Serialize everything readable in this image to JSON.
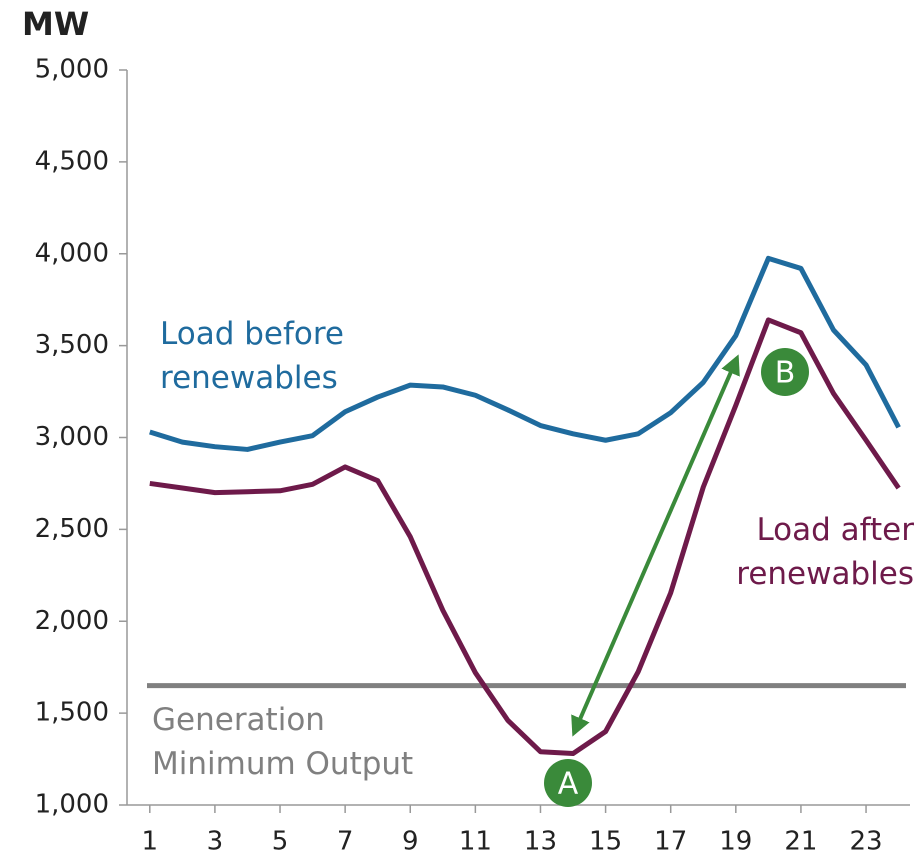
{
  "chart_data": {
    "type": "line",
    "y_label": "MW",
    "x": [
      1,
      2,
      3,
      4,
      5,
      6,
      7,
      8,
      9,
      10,
      11,
      12,
      13,
      14,
      15,
      16,
      17,
      18,
      19,
      20,
      21,
      22,
      23,
      24
    ],
    "series": [
      {
        "name": "Load before renewables",
        "color": "#1f6b9e",
        "values": [
          3030,
          2975,
          2950,
          2935,
          2975,
          3010,
          3140,
          3220,
          3285,
          3275,
          3230,
          3150,
          3065,
          3020,
          2985,
          3020,
          3135,
          3300,
          3555,
          3975,
          3920,
          3585,
          3395,
          3055
        ]
      },
      {
        "name": "Load after renewables",
        "color": "#6e1a4a",
        "values": [
          2750,
          2725,
          2700,
          2705,
          2710,
          2745,
          2840,
          2765,
          2460,
          2060,
          1720,
          1460,
          1290,
          1280,
          1400,
          1725,
          2155,
          2730,
          3175,
          3640,
          3570,
          3240,
          2985,
          2725
        ]
      }
    ],
    "min_output": {
      "name": "Generation Minimum Output",
      "value": 1650,
      "color": "#808080"
    },
    "annotations": [
      "A",
      "B"
    ],
    "xlim": [
      0.3,
      24.35
    ],
    "xticks": [
      1,
      3,
      5,
      7,
      9,
      11,
      13,
      15,
      17,
      19,
      21,
      23
    ],
    "ylim": [
      1000,
      5000
    ],
    "yticks": [
      {
        "value": 1000,
        "label": "1,000"
      },
      {
        "value": 1500,
        "label": "1,500"
      },
      {
        "value": 2000,
        "label": "2,000"
      },
      {
        "value": 2500,
        "label": "2,500"
      },
      {
        "value": 3000,
        "label": "3,000"
      },
      {
        "value": 3500,
        "label": "3,500"
      },
      {
        "value": 4000,
        "label": "4,000"
      },
      {
        "value": 4500,
        "label": "4,500"
      },
      {
        "value": 5000,
        "label": "5,000"
      }
    ]
  }
}
